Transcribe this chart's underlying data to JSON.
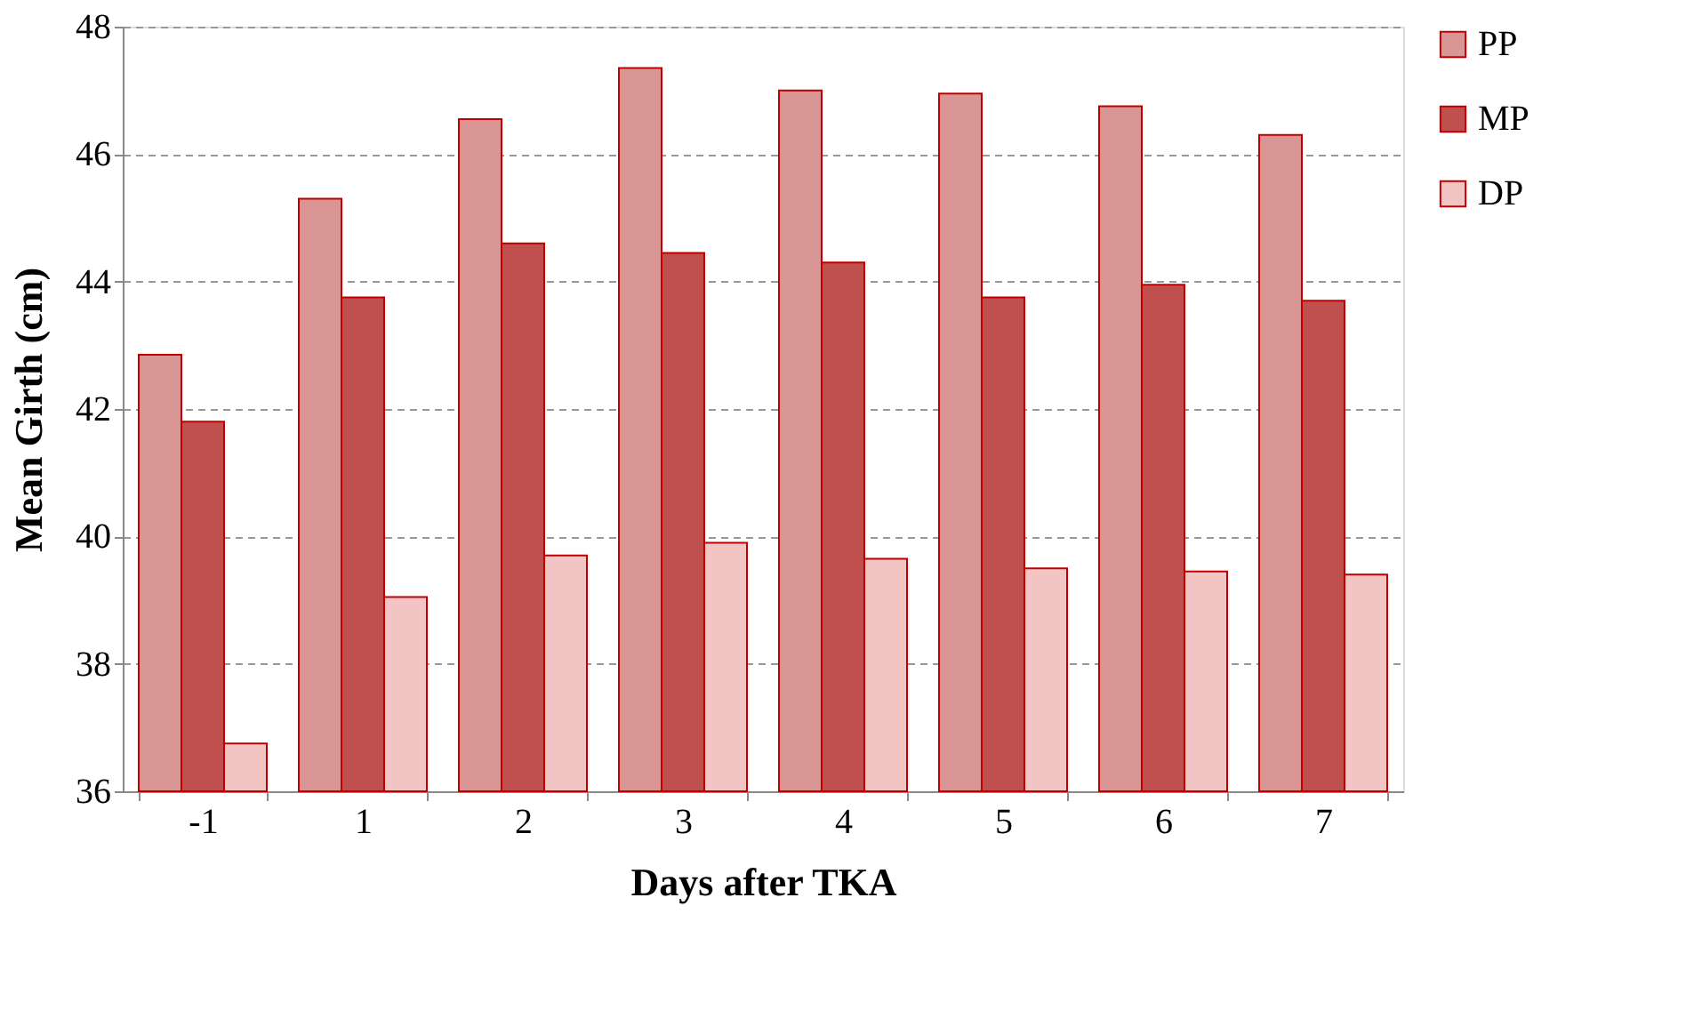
{
  "chart_data": {
    "type": "bar",
    "xlabel": "Days after TKA",
    "ylabel": "Mean Girth (cm)",
    "categories": [
      "-1",
      "1",
      "2",
      "3",
      "4",
      "5",
      "6",
      "7"
    ],
    "series": [
      {
        "name": "PP",
        "color": "#d99694",
        "values": [
          42.85,
          45.3,
          46.55,
          47.35,
          47.0,
          46.95,
          46.75,
          46.3
        ]
      },
      {
        "name": "MP",
        "color": "#c0504d",
        "values": [
          41.8,
          43.75,
          44.6,
          44.45,
          44.3,
          43.75,
          43.95,
          43.7
        ]
      },
      {
        "name": "DP",
        "color": "#f2c4c4",
        "values": [
          36.75,
          39.05,
          39.7,
          39.9,
          39.65,
          39.5,
          39.45,
          39.4
        ]
      }
    ],
    "ylim": [
      36,
      48
    ],
    "yticks": [
      36,
      38,
      40,
      42,
      44,
      46,
      48
    ],
    "grid": "y",
    "legend": "right"
  }
}
